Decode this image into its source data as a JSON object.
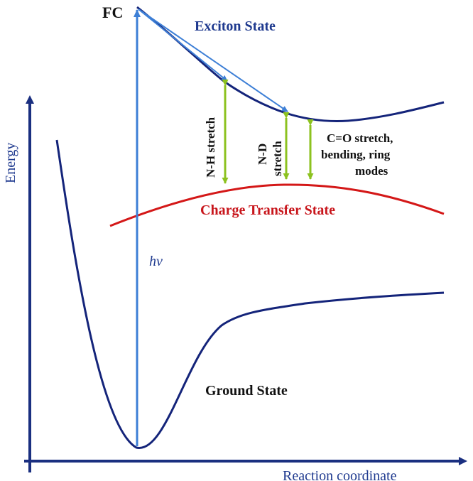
{
  "labels": {
    "fc": "FC",
    "exciton_state": "Exciton State",
    "charge_transfer_state": "Charge Transfer State",
    "ground_state": "Ground State",
    "energy_axis": "Energy",
    "reaction_coordinate_axis": "Reaction coordinate",
    "photon": "hν",
    "nh_stretch": "N-H stretch",
    "nd_stretch_line1": "N-D",
    "nd_stretch_line2": "stretch",
    "co_modes_line1": "C=O stretch,",
    "co_modes_line2": "bending, ring",
    "co_modes_line3": "modes"
  },
  "colors": {
    "axis": "#1a2f80",
    "ground_curve": "#14247a",
    "exciton_curve": "#14247a",
    "charge_transfer_curve": "#d41818",
    "excitation_arrow": "#3d7fd6",
    "relaxation_arrows": "#3d7fd6",
    "mode_arrows": "#8cc21f",
    "exciton_label": "#1f3a8f",
    "charge_transfer_label": "#c8161c",
    "black_label": "#111111",
    "axis_label": "#1f3a8f"
  }
}
